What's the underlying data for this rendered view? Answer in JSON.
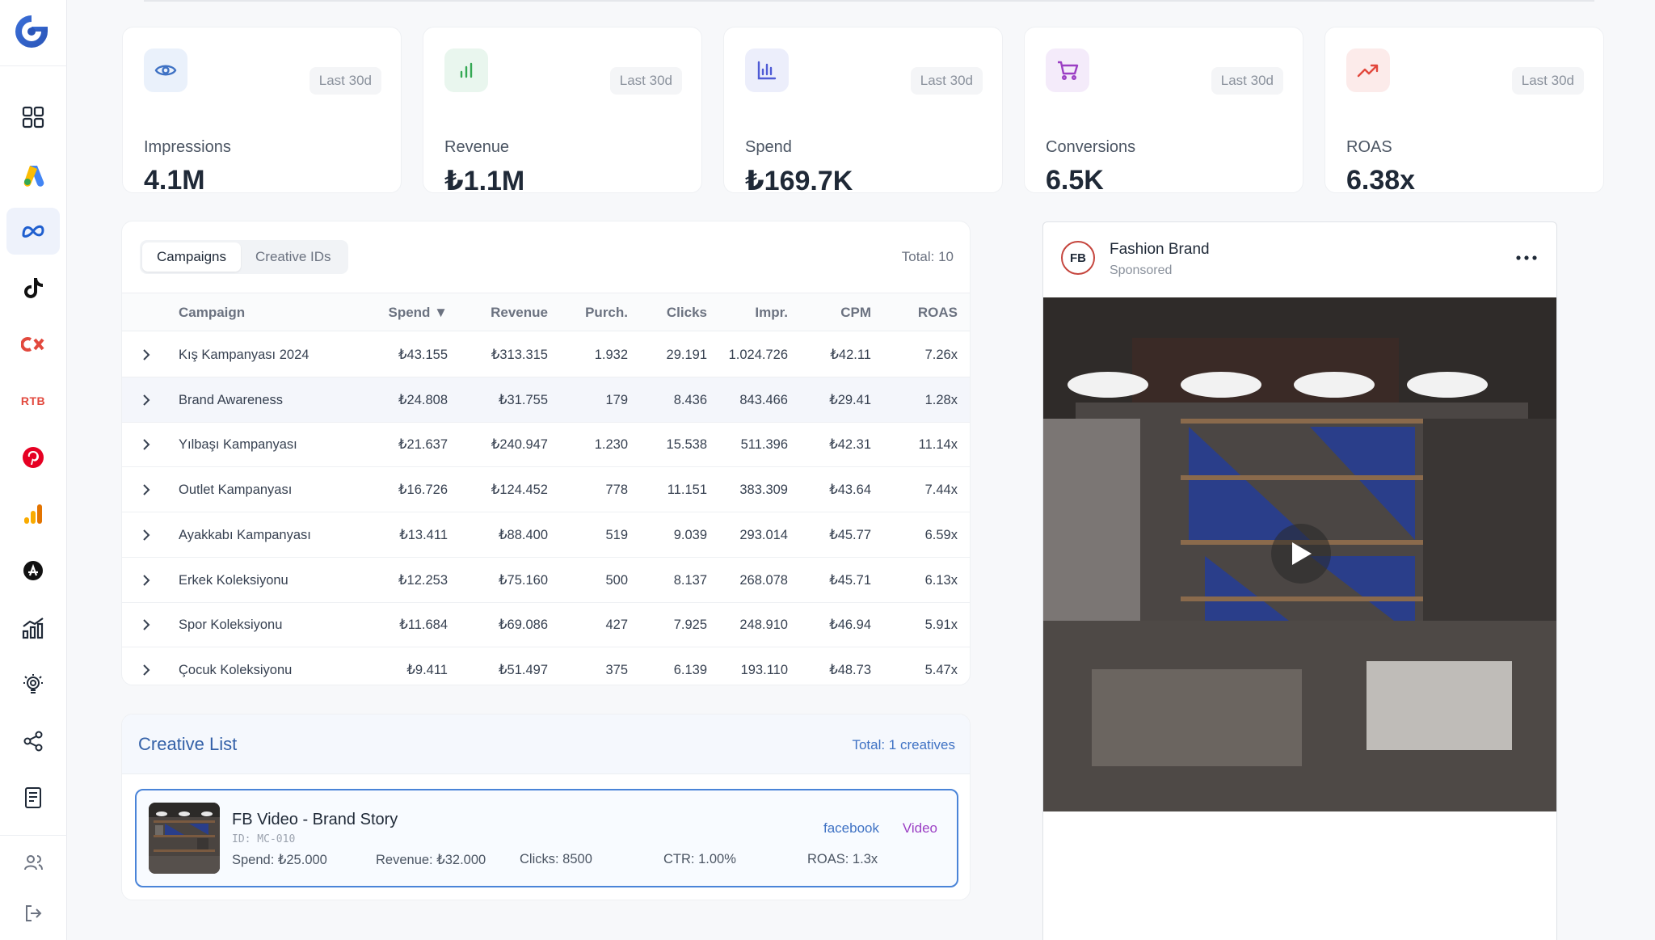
{
  "kpis": [
    {
      "label": "Impressions",
      "value": "4.1M",
      "period": "Last 30d",
      "icon": "eye-icon",
      "color": "#3f72c4",
      "bg": "#eaf1fb"
    },
    {
      "label": "Revenue",
      "value": "₺1.1M",
      "period": "Last 30d",
      "icon": "bar-chart-icon",
      "color": "#34a853",
      "bg": "#e9f6ee"
    },
    {
      "label": "Spend",
      "value": "₺169.7K",
      "period": "Last 30d",
      "icon": "column-chart-icon",
      "color": "#4f5bd5",
      "bg": "#eceefb"
    },
    {
      "label": "Conversions",
      "value": "6.5K",
      "period": "Last 30d",
      "icon": "cart-icon",
      "color": "#9b3fc4",
      "bg": "#f4ebfa"
    },
    {
      "label": "ROAS",
      "value": "6.38x",
      "period": "Last 30d",
      "icon": "trending-up-icon",
      "color": "#e2483d",
      "bg": "#fcebea"
    }
  ],
  "campaigns": {
    "tabs": [
      "Campaigns",
      "Creative IDs"
    ],
    "active_tab": "Campaigns",
    "total": "Total: 10",
    "columns": [
      "Campaign",
      "Spend ▼",
      "Revenue",
      "Purch.",
      "Clicks",
      "Impr.",
      "CPM",
      "ROAS"
    ],
    "rows": [
      [
        "Kış Kampanyası 2024",
        "₺43.155",
        "₺313.315",
        "1.932",
        "29.191",
        "1.024.726",
        "₺42.11",
        "7.26x"
      ],
      [
        "Brand Awareness",
        "₺24.808",
        "₺31.755",
        "179",
        "8.436",
        "843.466",
        "₺29.41",
        "1.28x"
      ],
      [
        "Yılbaşı Kampanyası",
        "₺21.637",
        "₺240.947",
        "1.230",
        "15.538",
        "511.396",
        "₺42.31",
        "11.14x"
      ],
      [
        "Outlet Kampanyası",
        "₺16.726",
        "₺124.452",
        "778",
        "11.151",
        "383.309",
        "₺43.64",
        "7.44x"
      ],
      [
        "Ayakkabı Kampanyası",
        "₺13.411",
        "₺88.400",
        "519",
        "9.039",
        "293.014",
        "₺45.77",
        "6.59x"
      ],
      [
        "Erkek Koleksiyonu",
        "₺12.253",
        "₺75.160",
        "500",
        "8.137",
        "268.078",
        "₺45.71",
        "6.13x"
      ],
      [
        "Spor Koleksiyonu",
        "₺11.684",
        "₺69.086",
        "427",
        "7.925",
        "248.910",
        "₺46.94",
        "5.91x"
      ],
      [
        "Çocuk Koleksiyonu",
        "₺9.411",
        "₺51.497",
        "375",
        "6.139",
        "193.110",
        "₺48.73",
        "5.47x"
      ]
    ]
  },
  "creative_list": {
    "title": "Creative List",
    "total": "Total: 1 creatives",
    "items": [
      {
        "title": "FB Video - Brand Story",
        "id": "ID: MC-010",
        "spend": "Spend: ₺25.000",
        "revenue": "Revenue: ₺32.000",
        "clicks": "Clicks: 8500",
        "ctr": "CTR: 1.00%",
        "roas": "ROAS: 1.3x",
        "platform": "facebook",
        "type": "Video"
      }
    ]
  },
  "preview": {
    "avatar": "FB",
    "name": "Fashion Brand",
    "sponsored": "Sponsored"
  },
  "sidebar": {
    "items": [
      "dashboard-icon",
      "google-ads-icon",
      "meta-icon",
      "tiktok-icon",
      "criteo-icon",
      "rtb-icon",
      "pinterest-icon",
      "analytics-icon",
      "appstore-icon",
      "reports-icon",
      "ideas-icon",
      "share-icon",
      "invoice-icon",
      "users-icon",
      "logout-icon"
    ],
    "rtb_label": "RTB",
    "active": "meta-icon"
  }
}
